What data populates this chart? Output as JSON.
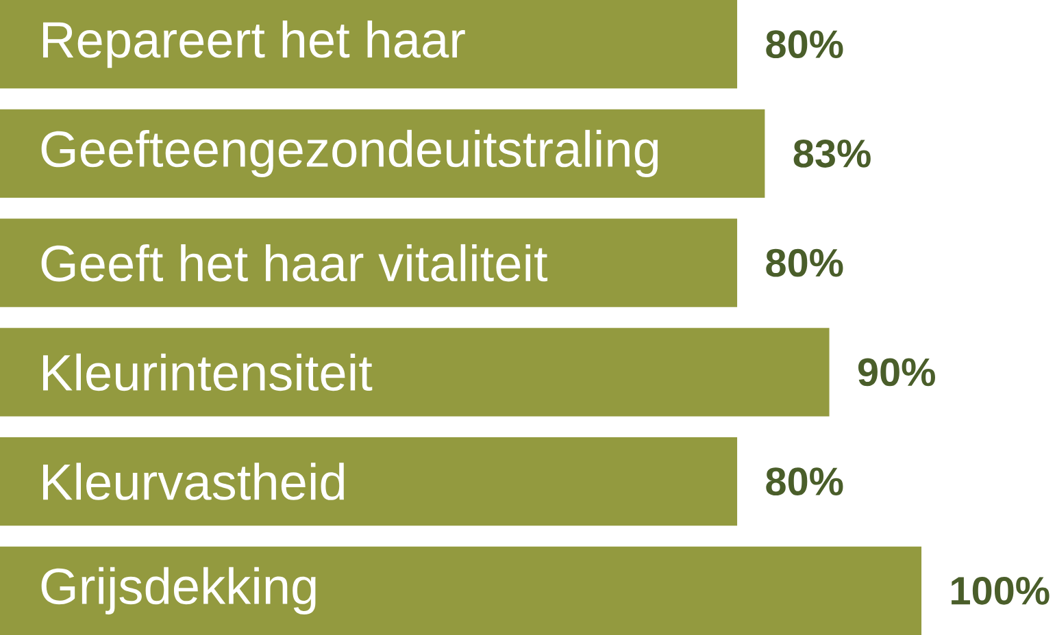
{
  "chart_data": {
    "type": "bar",
    "orientation": "horizontal",
    "categories": [
      "Repareert het haar",
      "Geefteengezondeuitstraling",
      "Geeft het haar vitaliteit",
      "Kleurintensiteit",
      "Kleurvastheid",
      "Grijsdekking"
    ],
    "values": [
      80,
      83,
      80,
      90,
      80,
      100
    ],
    "value_labels": [
      "80%",
      "83%",
      "80%",
      "90%",
      "80%",
      "100%"
    ],
    "color": "#939a3f"
  }
}
